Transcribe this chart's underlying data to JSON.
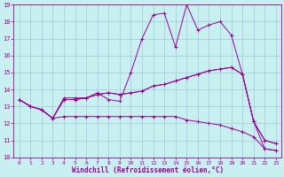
{
  "xlabel": "Windchill (Refroidissement éolien,°C)",
  "bg_color": "#c8f0f0",
  "line_color": "#990099",
  "grid_color": "#a0c8d8",
  "xlim": [
    -0.5,
    23.5
  ],
  "ylim": [
    10,
    19
  ],
  "xticks": [
    0,
    1,
    2,
    3,
    4,
    5,
    6,
    7,
    8,
    9,
    10,
    11,
    12,
    13,
    14,
    15,
    16,
    17,
    18,
    19,
    20,
    21,
    22,
    23
  ],
  "yticks": [
    10,
    11,
    12,
    13,
    14,
    15,
    16,
    17,
    18,
    19
  ],
  "series": [
    [
      13.4,
      13.0,
      12.8,
      12.3,
      13.5,
      13.5,
      13.5,
      13.8,
      13.4,
      13.3,
      15.0,
      17.0,
      18.4,
      18.5,
      16.5,
      19.0,
      17.5,
      17.8,
      18.0,
      17.2,
      14.9,
      12.1,
      10.5,
      10.4
    ],
    [
      13.4,
      13.0,
      12.8,
      12.3,
      13.4,
      13.4,
      13.5,
      13.7,
      13.8,
      13.7,
      13.8,
      13.9,
      14.2,
      14.3,
      14.5,
      14.7,
      14.9,
      15.1,
      15.2,
      15.3,
      14.9,
      12.1,
      11.0,
      10.8
    ],
    [
      13.4,
      13.0,
      12.8,
      12.3,
      12.4,
      12.4,
      12.4,
      12.4,
      12.4,
      12.4,
      12.4,
      12.4,
      12.4,
      12.4,
      12.4,
      12.2,
      12.1,
      12.0,
      11.9,
      11.7,
      11.5,
      11.2,
      10.5,
      10.4
    ],
    [
      13.4,
      13.0,
      12.8,
      12.3,
      13.4,
      13.4,
      13.5,
      13.7,
      13.8,
      13.7,
      13.8,
      13.9,
      14.2,
      14.3,
      14.5,
      14.7,
      14.9,
      15.1,
      15.2,
      15.3,
      14.9,
      12.1,
      11.0,
      10.8
    ]
  ]
}
